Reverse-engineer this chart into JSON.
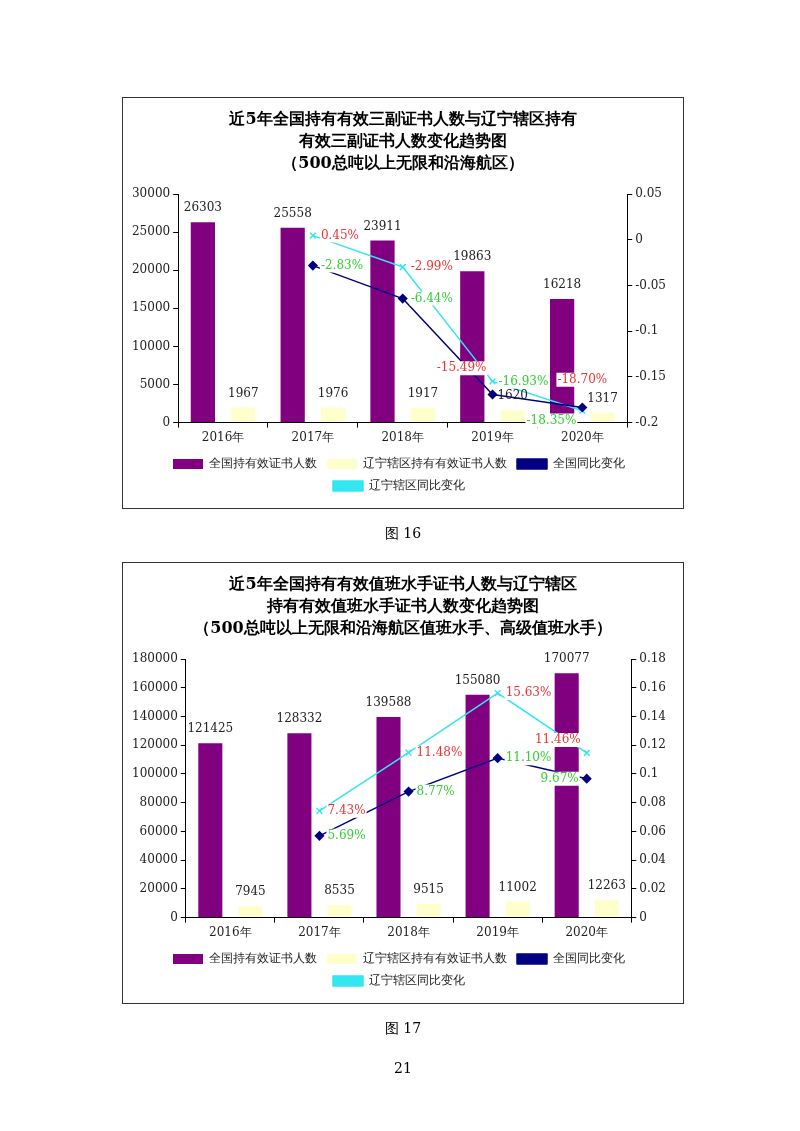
{
  "chart_data": [
    {
      "type": "bar",
      "title": "近5年全国持有有效三副证书人数与辽宁辖区持有有效三副证书人数变化趋势图",
      "subtitle": "（500总吨以上无限和沿海航区）",
      "categories": [
        "2016年",
        "2017年",
        "2018年",
        "2019年",
        "2020年"
      ],
      "series": [
        {
          "name": "全国持有效证书人数",
          "color": "#800080",
          "values": [
            26303,
            25558,
            23911,
            19863,
            16218
          ],
          "value_labels": [
            "26303",
            "25558",
            "23911",
            "19863",
            "16218"
          ]
        },
        {
          "name": "辽宁辖区持有有效证书人数",
          "color": "#ffffcc",
          "values": [
            1967,
            1976,
            1917,
            1620,
            1317
          ],
          "value_labels": [
            "1967",
            "1976",
            "1917",
            "1620",
            "1317"
          ]
        },
        {
          "name": "全国同比变化",
          "type": "line",
          "axis": "y2",
          "color": "#000080",
          "marker": "diamond",
          "values": [
            null,
            -0.0283,
            -0.0644,
            -0.1693,
            -0.1835
          ],
          "value_labels": [
            null,
            "-2.83%",
            "-6.44%",
            "-16.93%",
            "-18.35%"
          ]
        },
        {
          "name": "辽宁辖区同比变化",
          "type": "line",
          "axis": "y2",
          "color": "#33e6f0",
          "marker": "cross",
          "values": [
            null,
            0.0045,
            -0.0299,
            -0.1549,
            -0.187
          ],
          "value_labels": [
            null,
            "0.45%",
            "-2.99%",
            "-15.49%",
            "-18.70%"
          ]
        }
      ],
      "ylim": [
        0,
        30000
      ],
      "yticks": [
        0,
        5000,
        10000,
        15000,
        20000,
        25000,
        30000
      ],
      "y2lim": [
        -0.2,
        0.05
      ],
      "y2ticks": [
        -0.2,
        -0.15,
        -0.1,
        -0.05,
        0,
        0.05
      ],
      "grid": false,
      "legend": "bottom",
      "annotations": [
        "图 16"
      ]
    },
    {
      "type": "bar",
      "title": "近5年全国持有有效值班水手证书人数与辽宁辖区持有有效值班水手证书人数变化趋势图",
      "subtitle": "（500总吨以上无限和沿海航区值班水手、高级值班水手）",
      "categories": [
        "2016年",
        "2017年",
        "2018年",
        "2019年",
        "2020年"
      ],
      "series": [
        {
          "name": "全国持有效证书人数",
          "color": "#800080",
          "values": [
            121425,
            128332,
            139588,
            155080,
            170077
          ],
          "value_labels": [
            "121425",
            "128332",
            "139588",
            "155080",
            "170077"
          ]
        },
        {
          "name": "辽宁辖区持有有效证书人数",
          "color": "#ffffcc",
          "values": [
            7945,
            8535,
            9515,
            11002,
            12263
          ],
          "value_labels": [
            "7945",
            "8535",
            "9515",
            "11002",
            "12263"
          ]
        },
        {
          "name": "全国同比变化",
          "type": "line",
          "axis": "y2",
          "color": "#000080",
          "marker": "diamond",
          "values": [
            null,
            0.0569,
            0.0877,
            0.111,
            0.0967
          ],
          "value_labels": [
            null,
            "5.69%",
            "8.77%",
            "11.10%",
            "9.67%"
          ]
        },
        {
          "name": "辽宁辖区同比变化",
          "type": "line",
          "axis": "y2",
          "color": "#33e6f0",
          "marker": "cross",
          "values": [
            null,
            0.0743,
            0.1148,
            0.1563,
            0.1146
          ],
          "value_labels": [
            null,
            "7.43%",
            "11.48%",
            "15.63%",
            "11.46%"
          ]
        }
      ],
      "ylim": [
        0,
        180000
      ],
      "yticks": [
        0,
        20000,
        40000,
        60000,
        80000,
        100000,
        120000,
        140000,
        160000,
        180000
      ],
      "y2lim": [
        0,
        0.18
      ],
      "y2ticks": [
        0,
        0.02,
        0.04,
        0.06,
        0.08,
        0.1,
        0.12,
        0.14,
        0.16,
        0.18
      ],
      "grid": false,
      "legend": "bottom",
      "annotations": [
        "图 17",
        "21"
      ]
    }
  ]
}
